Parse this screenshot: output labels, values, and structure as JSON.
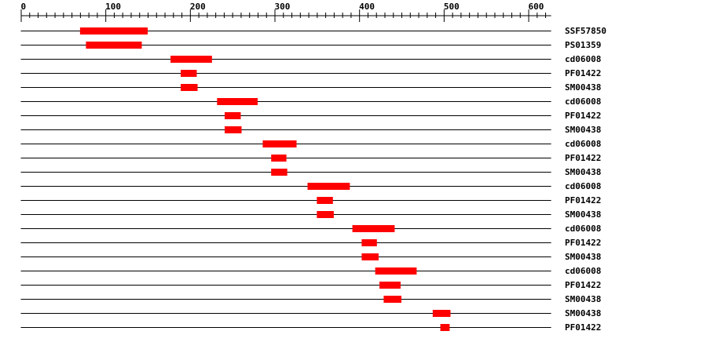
{
  "axis": {
    "min": 0,
    "max": 627,
    "major_step": 100,
    "minor_step": 10,
    "labels": [
      "0",
      "100",
      "200",
      "300",
      "400",
      "500",
      "600"
    ]
  },
  "colors": {
    "feature": "#ff0000",
    "line": "#000000"
  },
  "features": [
    {
      "name": "SSF57850",
      "start": 70,
      "end": 150
    },
    {
      "name": "PS01359",
      "start": 77,
      "end": 143
    },
    {
      "name": "cd06008",
      "start": 177,
      "end": 226
    },
    {
      "name": "PF01422",
      "start": 189,
      "end": 208
    },
    {
      "name": "SM00438",
      "start": 189,
      "end": 209
    },
    {
      "name": "cd06008",
      "start": 232,
      "end": 280
    },
    {
      "name": "PF01422",
      "start": 241,
      "end": 260
    },
    {
      "name": "SM00438",
      "start": 241,
      "end": 261
    },
    {
      "name": "cd06008",
      "start": 286,
      "end": 326
    },
    {
      "name": "PF01422",
      "start": 296,
      "end": 314
    },
    {
      "name": "SM00438",
      "start": 296,
      "end": 315
    },
    {
      "name": "cd06008",
      "start": 339,
      "end": 389
    },
    {
      "name": "PF01422",
      "start": 350,
      "end": 369
    },
    {
      "name": "SM00438",
      "start": 350,
      "end": 370
    },
    {
      "name": "cd06008",
      "start": 392,
      "end": 442
    },
    {
      "name": "PF01422",
      "start": 403,
      "end": 421
    },
    {
      "name": "SM00438",
      "start": 403,
      "end": 423
    },
    {
      "name": "cd06008",
      "start": 419,
      "end": 468
    },
    {
      "name": "PF01422",
      "start": 424,
      "end": 449
    },
    {
      "name": "SM00438",
      "start": 429,
      "end": 450
    },
    {
      "name": "SM00438",
      "start": 487,
      "end": 508
    },
    {
      "name": "PF01422",
      "start": 496,
      "end": 507
    }
  ]
}
